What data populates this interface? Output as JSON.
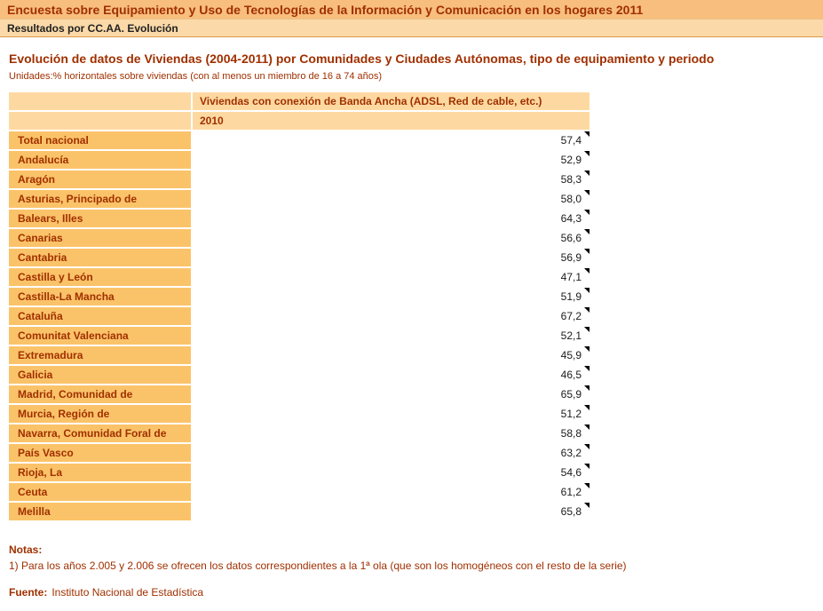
{
  "header": {
    "title": "Encuesta sobre Equipamiento y Uso de Tecnologías de la Información y Comunicación en los hogares 2011",
    "subtitle": "Resultados por CC.AA. Evolución"
  },
  "main": {
    "title": "Evolución de datos de Viviendas (2004-2011) por Comunidades y Ciudades Autónomas, tipo de equipamiento y periodo",
    "units": "Unidades:% horizontales sobre viviendas (con al menos un miembro de 16 a 74 años)"
  },
  "table": {
    "column_header": "Viviendas con conexión de Banda Ancha (ADSL, Red de cable, etc.)",
    "period_header": "2010",
    "rows": [
      {
        "label": "Total nacional",
        "value": "57,4"
      },
      {
        "label": "Andalucía",
        "value": "52,9"
      },
      {
        "label": "Aragón",
        "value": "58,3"
      },
      {
        "label": "Asturias, Principado de",
        "value": "58,0"
      },
      {
        "label": "Balears, Illes",
        "value": "64,3"
      },
      {
        "label": "Canarias",
        "value": "56,6"
      },
      {
        "label": "Cantabria",
        "value": "56,9"
      },
      {
        "label": "Castilla y León",
        "value": "47,1"
      },
      {
        "label": "Castilla-La Mancha",
        "value": "51,9"
      },
      {
        "label": "Cataluña",
        "value": "67,2"
      },
      {
        "label": "Comunitat Valenciana",
        "value": "52,1"
      },
      {
        "label": "Extremadura",
        "value": "45,9"
      },
      {
        "label": "Galicia",
        "value": "46,5"
      },
      {
        "label": "Madrid, Comunidad de",
        "value": "65,9"
      },
      {
        "label": "Murcia, Región de",
        "value": "51,2"
      },
      {
        "label": "Navarra, Comunidad Foral de",
        "value": "58,8"
      },
      {
        "label": "País Vasco",
        "value": "63,2"
      },
      {
        "label": "Rioja, La",
        "value": "54,6"
      },
      {
        "label": "Ceuta",
        "value": "61,2"
      },
      {
        "label": "Melilla",
        "value": "65,8"
      }
    ]
  },
  "notes": {
    "heading": "Notas:",
    "items": [
      "1) Para los años 2.005 y 2.006 se ofrecen los datos correspondientes a la 1ª ola (que son los homogéneos con el resto de la serie)"
    ],
    "source_label": "Fuente:",
    "source_text": "Instituto Nacional de Estadística"
  },
  "colors": {
    "bar1-bg": "#F8BE7D",
    "bar2-bg": "#FBD9A8",
    "bar-border": "#DD9A4B",
    "bar-border-light": "#EFC188",
    "accent-text": "#A03000",
    "subtitle-text": "#222222",
    "label-cell-bg": "#FBC369",
    "header-cell-bg": "#FDD9A1",
    "value-text": "#1A1A1A",
    "marker": "#000000"
  }
}
